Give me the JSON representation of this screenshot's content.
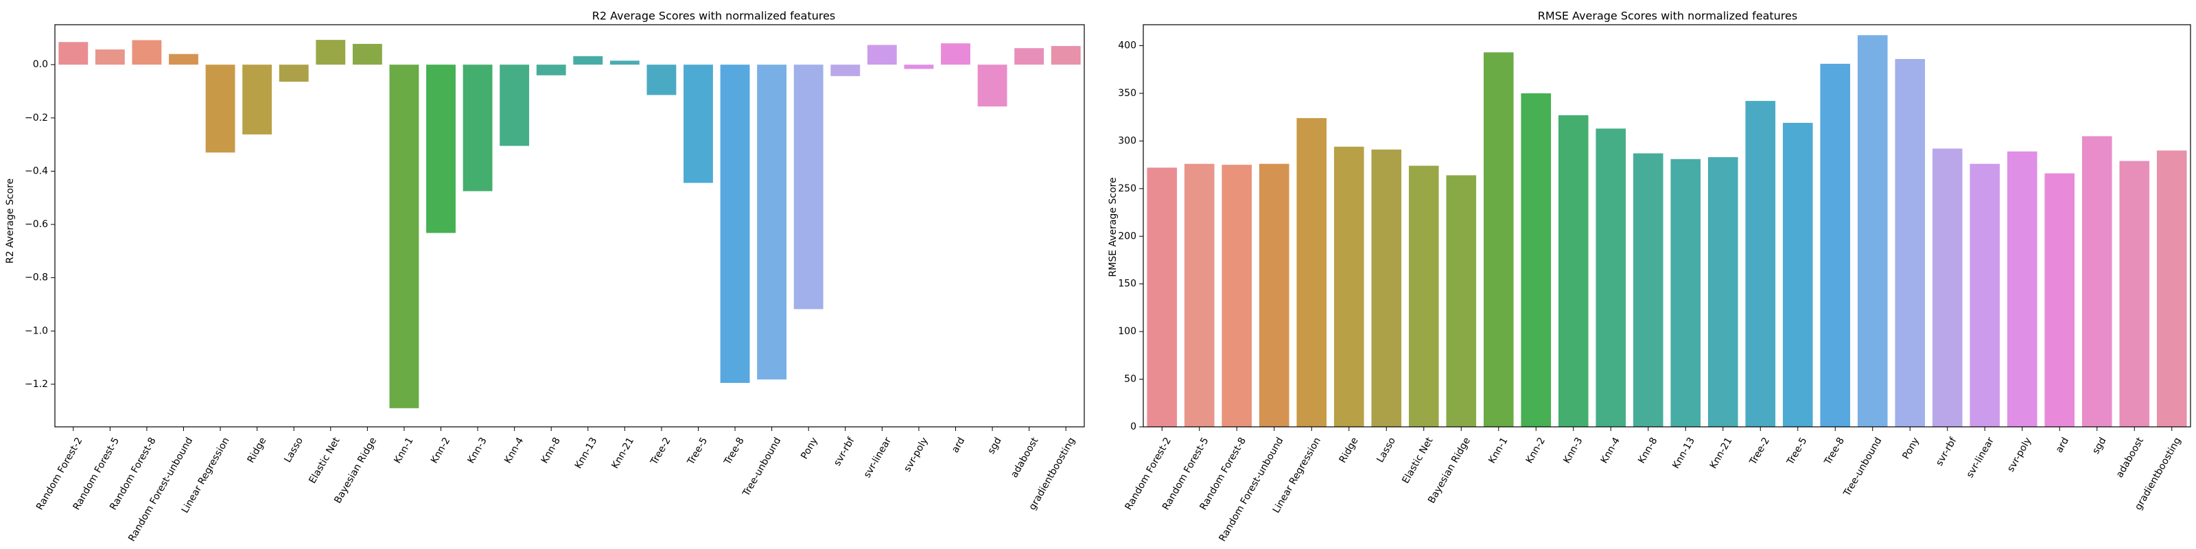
{
  "chart_data": [
    {
      "type": "bar",
      "title": "R2 Average Scores with normalized features",
      "xlabel": "",
      "ylabel": "R2 Average Score",
      "ylim": [
        -1.36,
        0.15
      ],
      "yticks": [
        0.0,
        -0.2,
        -0.4,
        -0.6,
        -0.8,
        -1.0,
        -1.2
      ],
      "ytick_labels": [
        "0.0",
        "−0.2",
        "−0.4",
        "−0.6",
        "−0.8",
        "−1.0",
        "−1.2"
      ],
      "grid": false,
      "legend": "none",
      "categories": [
        "Random Forest-2",
        "Random Forest-5",
        "Random Forest-8",
        "Random Forest-unbound",
        "Linear Regression",
        "Ridge",
        "Lasso",
        "Elastic Net",
        "Bayesian Ridge",
        "Knn-1",
        "Knn-2",
        "Knn-3",
        "Knn-4",
        "Knn-8",
        "Knn-13",
        "Knn-21",
        "Tree-2",
        "Tree-5",
        "Tree-8",
        "Tree-unbound",
        "Pony",
        "svr-rbf",
        "svr-linear",
        "svr-poly",
        "ard",
        "sgd",
        "adaboost",
        "gradientboosting"
      ],
      "values": [
        0.085,
        0.057,
        0.092,
        0.04,
        -0.33,
        -0.262,
        -0.064,
        0.093,
        0.078,
        -1.29,
        -0.632,
        -0.475,
        -0.305,
        -0.04,
        0.032,
        0.015,
        -0.114,
        -0.444,
        -1.195,
        -1.182,
        -0.918,
        -0.043,
        0.074,
        -0.016,
        0.08,
        -0.157,
        0.062,
        0.07
      ]
    },
    {
      "type": "bar",
      "title": "RMSE Average Scores with normalized features",
      "xlabel": "",
      "ylabel": "RMSE Average Score",
      "ylim": [
        0,
        422
      ],
      "yticks": [
        0,
        50,
        100,
        150,
        200,
        250,
        300,
        350,
        400
      ],
      "ytick_labels": [
        "0",
        "50",
        "100",
        "150",
        "200",
        "250",
        "300",
        "350",
        "400"
      ],
      "grid": false,
      "legend": "none",
      "categories": [
        "Random Forest-2",
        "Random Forest-5",
        "Random Forest-8",
        "Random Forest-unbound",
        "Linear Regression",
        "Ridge",
        "Lasso",
        "Elastic Net",
        "Bayesian Ridge",
        "Knn-1",
        "Knn-2",
        "Knn-3",
        "Knn-4",
        "Knn-8",
        "Knn-13",
        "Knn-21",
        "Tree-2",
        "Tree-5",
        "Tree-8",
        "Tree-unbound",
        "Pony",
        "svr-rbf",
        "svr-linear",
        "svr-poly",
        "ard",
        "sgd",
        "adaboost",
        "gradientboosting"
      ],
      "values": [
        272,
        276,
        275,
        276,
        324,
        294,
        291,
        274,
        264,
        393,
        350,
        327,
        313,
        287,
        281,
        283,
        342,
        319,
        381,
        411,
        386,
        292,
        276,
        289,
        266,
        305,
        279,
        290
      ]
    }
  ],
  "colors": [
    "#e98d92",
    "#e8958a",
    "#e8937a",
    "#d59352",
    "#c89a47",
    "#b8a046",
    "#aca148",
    "#9aa747",
    "#89a947",
    "#6aab46",
    "#46b052",
    "#44ae6e",
    "#45ae87",
    "#47ad98",
    "#48aca6",
    "#49abb3",
    "#4aaac3",
    "#4daad2",
    "#56a8df",
    "#78afe5",
    "#a1b0ea",
    "#baa7ea",
    "#cd9beb",
    "#df8fe6",
    "#e88ad9",
    "#e88dc9",
    "#e78fb9",
    "#e791aa"
  ]
}
